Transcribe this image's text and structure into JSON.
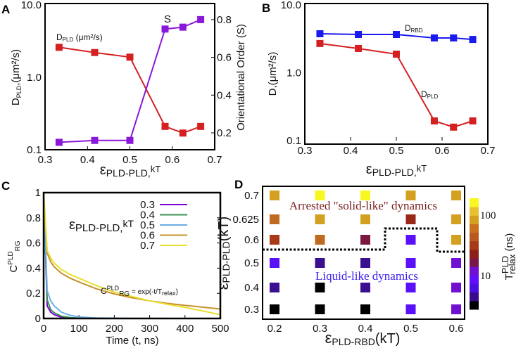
{
  "chart_data": [
    {
      "panel": "A",
      "type": "line",
      "x": [
        0.333,
        0.417,
        0.5,
        0.583,
        0.625,
        0.667
      ],
      "series": [
        {
          "name": "D_PLD (μm²/s)",
          "axis": "left",
          "color": "#d42020",
          "values": [
            2.6,
            2.2,
            1.9,
            0.21,
            0.17,
            0.21
          ]
        },
        {
          "name": "S",
          "axis": "right",
          "color": "#8a18d8",
          "values": [
            0.15,
            0.16,
            0.16,
            0.75,
            0.76,
            0.8
          ]
        }
      ],
      "xlim": [
        0.3,
        0.7
      ],
      "xticks": [
        "0.3",
        "0.4",
        "0.5",
        "0.6",
        "0.7"
      ],
      "ylim": [
        0.1,
        10
      ],
      "yscale": "log",
      "yticks": [
        "10.0",
        "1.0",
        "0.1"
      ],
      "y2ticks": [
        "0.2",
        "0.4",
        "0.6",
        "0.8"
      ],
      "xlabel": {
        "main": "ε",
        "sub": "PLD-PLD,",
        "tail": "kT"
      },
      "ylabel": {
        "main": "D",
        "sub": "PLD",
        "tail": ",(μm²/s)"
      },
      "y2label": "Orientational Order (S)",
      "annotations": {
        "dpld_main": "D",
        "dpld_sub": "PLD",
        "dpld_tail": " (μm²/s)",
        "s": "S"
      }
    },
    {
      "panel": "B",
      "type": "line",
      "x": [
        0.333,
        0.417,
        0.5,
        0.583,
        0.625,
        0.667
      ],
      "series": [
        {
          "name": "D_RBD",
          "color": "#1a1af0",
          "values": [
            3.76,
            3.67,
            3.67,
            3.26,
            3.26,
            3.1
          ]
        },
        {
          "name": "D_PLD",
          "color": "#d42020",
          "values": [
            2.7,
            2.28,
            1.88,
            0.195,
            0.158,
            0.195
          ]
        }
      ],
      "xlim": [
        0.3,
        0.7
      ],
      "xticks": [
        "0.3",
        "0.4",
        "0.5",
        "0.6",
        "0.7"
      ],
      "ylim": [
        0.1,
        10
      ],
      "yscale": "log",
      "yticks": [
        "10.0",
        "1.0",
        "0.1"
      ],
      "xlabel": {
        "main": "ε",
        "sub": "PLD-PLD,",
        "tail": "kT"
      },
      "ylabel": "D,(μm²/s)",
      "annotations": {
        "drbd_main": "D",
        "drbd_sub": "RBD",
        "dpld_main": "D",
        "dpld_sub": "PLD"
      }
    },
    {
      "panel": "C",
      "type": "line",
      "x": [
        0,
        10,
        20,
        30,
        50,
        75,
        100,
        150,
        200,
        250,
        300,
        350,
        400,
        450,
        500
      ],
      "series": [
        {
          "name": "0.3",
          "color": "#7a00d8",
          "values": [
            1,
            0.1,
            0.05,
            0.03,
            0.01,
            0.004,
            0.001,
            0,
            0,
            0,
            0,
            0,
            0,
            0,
            0
          ]
        },
        {
          "name": "0.4",
          "color": "#3a8f50",
          "values": [
            1,
            0.15,
            0.07,
            0.045,
            0.018,
            0.007,
            0.003,
            0.001,
            0,
            0,
            0,
            0,
            0,
            0,
            0
          ]
        },
        {
          "name": "0.5",
          "color": "#6aaee8",
          "values": [
            1,
            0.22,
            0.14,
            0.1,
            0.05,
            0.025,
            0.012,
            0.004,
            0.002,
            0.001,
            0.001,
            0,
            0,
            0,
            0
          ]
        },
        {
          "name": "0.6",
          "color": "#c8902a",
          "values": [
            1,
            0.52,
            0.45,
            0.41,
            0.36,
            0.32,
            0.29,
            0.235,
            0.195,
            0.165,
            0.14,
            0.12,
            0.104,
            0.09,
            0.075
          ]
        },
        {
          "name": "0.7",
          "color": "#e8e030",
          "values": [
            1,
            0.54,
            0.48,
            0.44,
            0.39,
            0.35,
            0.32,
            0.26,
            0.21,
            0.175,
            0.14,
            0.112,
            0.088,
            0.06,
            0.03
          ]
        }
      ],
      "xlim": [
        0,
        500
      ],
      "xticks": [
        "0",
        "100",
        "200",
        "300",
        "400",
        "500"
      ],
      "ylim": [
        0,
        1
      ],
      "yticks": [
        "0",
        "0.2",
        "0.4",
        "0.6",
        "0.8",
        "1"
      ],
      "xlabel": "Time (t, ns)",
      "ylabel": {
        "main": "C",
        "sup": "PLD",
        "sub": "RG"
      },
      "legend_title": {
        "main": "ε",
        "sub": "PLD-PLD,",
        "tail": "kT"
      },
      "legend_position": "top-right",
      "equation": {
        "c": "C",
        "sup": "PLD",
        "sub": "RG",
        "rhs": " = exp(-t/T",
        "relax": "relax",
        "close": ")"
      }
    },
    {
      "panel": "D",
      "type": "heatmap",
      "x": [
        0.2,
        0.3,
        0.4,
        0.5,
        0.6
      ],
      "y": [
        "0.7",
        "0.625",
        "0.6",
        "0.5",
        "0.4",
        "0.3"
      ],
      "cell_colors": [
        [
          "#d4a020",
          "#f8f820",
          "#f8f820",
          "#d4a020",
          "#d4a020"
        ],
        [
          "#c06a20",
          "#d4a020",
          "#d4a020",
          "#9a2818",
          "#d4a020"
        ],
        [
          "#a83a18",
          "#c06a20",
          "#7a1840",
          "#5a10f8",
          "#d4a020"
        ],
        [
          "#5a10f8",
          "#3a1090",
          "#3a1090",
          "#5a10f8",
          "#7010d0"
        ],
        [
          "#3a1090",
          "#000000",
          "#3a1090",
          "#5a10f8",
          "#7010d0"
        ],
        [
          "#000000",
          "#000000",
          "#000000",
          "#5a10f8",
          "#7010d0"
        ]
      ],
      "xticks": [
        "0.2",
        "0.3",
        "0.4",
        "0.5",
        "0.6"
      ],
      "xlabel": {
        "main": "ε",
        "sub": "PLD-RBD",
        "tail": "(kT)"
      },
      "ylabel": {
        "main": "ε",
        "sub": "PLD-PLD",
        "tail": "(kT)"
      },
      "colorbar": {
        "scale": "log",
        "colors": [
          "#000000",
          "#3a0c8a",
          "#4a10e0",
          "#6010f8",
          "#7010d0",
          "#781848",
          "#8a2018",
          "#a83a18",
          "#b85a20",
          "#c87020",
          "#d4a020",
          "#e8c030",
          "#f8f820"
        ],
        "ticks": [
          "10",
          "100"
        ],
        "label": {
          "main": "T",
          "sup": "PLD",
          "sub": "relax",
          "tail": " (ns)"
        }
      },
      "region_labels": {
        "arrested": "Arrested \"solid-like\" dynamics",
        "liquid": "Liquid-like dynamics"
      },
      "region_colors": {
        "arrested": "#7a2020",
        "liquid": "#3a20f0"
      }
    }
  ],
  "panels": {
    "a": "A",
    "b": "B",
    "c": "C",
    "d": "D"
  }
}
